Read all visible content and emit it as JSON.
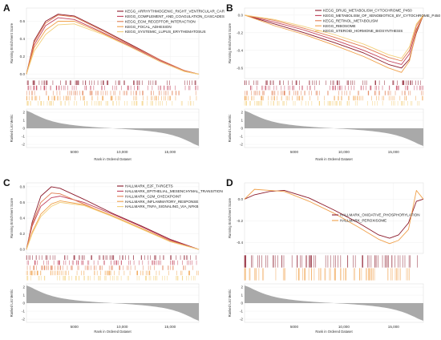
{
  "figure": {
    "background": "#ffffff"
  },
  "chart_data": [
    {
      "letter": "A",
      "type": "line",
      "title": "",
      "x_range": [
        0,
        18000
      ],
      "x_ticks": [
        "5000",
        "10,000",
        "15,000"
      ],
      "x_tick_values": [
        5000,
        10000,
        15000
      ],
      "xlabel": "Rank in Ordered Dataset",
      "es_ylabel": "Running Enrichment Score",
      "es_ylim": [
        -0.05,
        0.75
      ],
      "es_ticks": [
        "0.0",
        "0.2",
        "0.4",
        "0.6"
      ],
      "es_tick_values": [
        0,
        0.2,
        0.4,
        0.6
      ],
      "metric_ylabel": "Ranked List Metric",
      "metric_ticks": [
        "2",
        "1",
        "0",
        "-1",
        "-2"
      ],
      "metric_tick_values": [
        2,
        1,
        0,
        -1,
        -2
      ],
      "legend_position": "top-right",
      "series": [
        {
          "name": "KEGG_ARRHYTHMOGENIC_RIGHT_VENTRICULAR_CAR",
          "color": "#8b1a2b",
          "x": [
            0,
            800,
            2000,
            3300,
            5000,
            8000,
            11000,
            14000,
            16500,
            18000
          ],
          "es": [
            0,
            0.38,
            0.6,
            0.68,
            0.66,
            0.5,
            0.33,
            0.16,
            0.04,
            0
          ]
        },
        {
          "name": "KEGG_COMPLEMENT_AND_COAGULATION_CASCADES",
          "color": "#c2405a",
          "x": [
            0,
            800,
            2000,
            3300,
            5000,
            8000,
            11000,
            14000,
            16500,
            18000
          ],
          "es": [
            0,
            0.33,
            0.55,
            0.64,
            0.62,
            0.47,
            0.31,
            0.15,
            0.04,
            0
          ]
        },
        {
          "name": "KEGG_ECM_RECEPTOR_INTERACTION",
          "color": "#e07b50",
          "x": [
            0,
            800,
            2000,
            3300,
            5000,
            8000,
            11000,
            14000,
            16500,
            18000
          ],
          "es": [
            0,
            0.36,
            0.58,
            0.67,
            0.65,
            0.49,
            0.32,
            0.16,
            0.04,
            0
          ]
        },
        {
          "name": "KEGG_FOCAL_ADHESION",
          "color": "#f0a04a",
          "x": [
            0,
            800,
            2000,
            3300,
            5000,
            8000,
            11000,
            14000,
            16500,
            18000
          ],
          "es": [
            0,
            0.3,
            0.5,
            0.6,
            0.6,
            0.46,
            0.3,
            0.14,
            0.03,
            0
          ]
        },
        {
          "name": "KEGG_SYSTEMIC_LUPUS_ERYTHEMATOSUS",
          "color": "#f3cf7a",
          "x": [
            0,
            800,
            2000,
            3300,
            5000,
            8000,
            11000,
            14000,
            16500,
            18000
          ],
          "es": [
            0,
            0.26,
            0.45,
            0.56,
            0.57,
            0.45,
            0.3,
            0.14,
            0.03,
            0
          ]
        }
      ]
    },
    {
      "letter": "B",
      "type": "line",
      "title": "",
      "x_range": [
        0,
        18000
      ],
      "x_ticks": [
        "5000",
        "10,000",
        "15,000"
      ],
      "x_tick_values": [
        5000,
        10000,
        15000
      ],
      "xlabel": "Rank in Ordered Dataset",
      "es_ylabel": "Running Enrichment Score",
      "es_ylim": [
        -0.72,
        0.08
      ],
      "es_ticks": [
        "0.0",
        "-0.2",
        "-0.4",
        "-0.6"
      ],
      "es_tick_values": [
        0,
        -0.2,
        -0.4,
        -0.6
      ],
      "metric_ylabel": "Ranked List Metric",
      "metric_ticks": [
        "2",
        "1",
        "0",
        "-1",
        "-2"
      ],
      "metric_tick_values": [
        2,
        1,
        0,
        -1,
        -2
      ],
      "legend_position": "top-right",
      "series": [
        {
          "name": "KEGG_DRUG_METABOLISM_CYTOCHROME_P450",
          "color": "#8b1a2b",
          "x": [
            0,
            3000,
            6000,
            9000,
            12000,
            14500,
            15800,
            16600,
            17300,
            18000
          ],
          "es": [
            0,
            -0.1,
            -0.2,
            -0.31,
            -0.43,
            -0.56,
            -0.6,
            -0.5,
            -0.2,
            0
          ]
        },
        {
          "name": "KEGG_METABOLISM_OF_XENOBIOTICS_BY_CYTOCHROME_P450",
          "color": "#c2405a",
          "x": [
            0,
            3000,
            6000,
            9000,
            12000,
            14500,
            15800,
            16600,
            17300,
            18000
          ],
          "es": [
            0,
            -0.08,
            -0.17,
            -0.28,
            -0.4,
            -0.52,
            -0.56,
            -0.44,
            -0.16,
            0
          ]
        },
        {
          "name": "KEGG_RETINOL_METABOLISM",
          "color": "#e07b50",
          "x": [
            0,
            3000,
            6000,
            9000,
            12000,
            14500,
            15800,
            16600,
            17300,
            18000
          ],
          "es": [
            0,
            -0.06,
            -0.15,
            -0.25,
            -0.36,
            -0.48,
            -0.52,
            -0.4,
            -0.12,
            0
          ]
        },
        {
          "name": "KEGG_RIBOSOME",
          "color": "#f0a04a",
          "x": [
            0,
            3000,
            6000,
            9000,
            12000,
            14500,
            15800,
            16600,
            17300,
            18000
          ],
          "es": [
            0,
            -0.12,
            -0.22,
            -0.34,
            -0.47,
            -0.6,
            -0.65,
            -0.52,
            -0.18,
            0
          ]
        },
        {
          "name": "KEGG_STEROID_HORMONE_BIOSYNTHESIS",
          "color": "#f3cf7a",
          "x": [
            0,
            3000,
            6000,
            9000,
            12000,
            14500,
            15800,
            16600,
            17300,
            18000
          ],
          "es": [
            0,
            -0.05,
            -0.13,
            -0.22,
            -0.33,
            -0.45,
            -0.49,
            -0.36,
            -0.1,
            0
          ]
        }
      ]
    },
    {
      "letter": "C",
      "type": "line",
      "title": "",
      "x_range": [
        0,
        18000
      ],
      "x_ticks": [
        "5000",
        "10,000",
        "15,000"
      ],
      "x_tick_values": [
        5000,
        10000,
        15000
      ],
      "xlabel": "Rank in Ordered Dataset",
      "es_ylabel": "Running Enrichment Score",
      "es_ylim": [
        -0.05,
        0.85
      ],
      "es_ticks": [
        "0.0",
        "0.2",
        "0.4",
        "0.6",
        "0.8"
      ],
      "es_tick_values": [
        0,
        0.2,
        0.4,
        0.6,
        0.8
      ],
      "metric_ylabel": "Ranked List Metric",
      "metric_ticks": [
        "2",
        "1",
        "0",
        "-1",
        "-2"
      ],
      "metric_tick_values": [
        2,
        1,
        0,
        -1,
        -2
      ],
      "legend_position": "top-right",
      "series": [
        {
          "name": "HALLMARK_E2F_TARGETS",
          "color": "#8b1a2b",
          "x": [
            0,
            600,
            1500,
            2600,
            3500,
            6000,
            9000,
            12000,
            15000,
            18000
          ],
          "es": [
            0,
            0.35,
            0.68,
            0.8,
            0.78,
            0.64,
            0.46,
            0.3,
            0.13,
            0
          ]
        },
        {
          "name": "HALLMARK_EPITHELIAL_MESENCHYMAL_TRANSITION",
          "color": "#c2405a",
          "x": [
            0,
            600,
            1500,
            2600,
            3500,
            6000,
            9000,
            12000,
            15000,
            18000
          ],
          "es": [
            0,
            0.3,
            0.55,
            0.66,
            0.68,
            0.6,
            0.45,
            0.29,
            0.12,
            0
          ]
        },
        {
          "name": "HALLMARK_G2M_CHECKPOINT",
          "color": "#e07b50",
          "x": [
            0,
            600,
            1500,
            2600,
            3500,
            6000,
            9000,
            12000,
            15000,
            18000
          ],
          "es": [
            0,
            0.32,
            0.6,
            0.72,
            0.71,
            0.58,
            0.42,
            0.27,
            0.11,
            0
          ]
        },
        {
          "name": "HALLMARK_INFLAMMATORY_RESPONSE",
          "color": "#f0a04a",
          "x": [
            0,
            600,
            1500,
            2600,
            3500,
            6000,
            9000,
            12000,
            15000,
            18000
          ],
          "es": [
            0,
            0.22,
            0.45,
            0.58,
            0.62,
            0.57,
            0.43,
            0.27,
            0.1,
            0
          ]
        },
        {
          "name": "HALLMARK_TNFA_SIGNALING_VIA_NFKB",
          "color": "#f3cf7a",
          "x": [
            0,
            600,
            1500,
            2600,
            3500,
            6000,
            9000,
            12000,
            15000,
            18000
          ],
          "es": [
            0,
            0.2,
            0.42,
            0.55,
            0.6,
            0.56,
            0.42,
            0.26,
            0.1,
            0
          ]
        }
      ]
    },
    {
      "letter": "D",
      "type": "line",
      "title": "",
      "x_range": [
        0,
        18000
      ],
      "x_ticks": [
        "5000",
        "10,000",
        "15,000"
      ],
      "x_tick_values": [
        5000,
        10000,
        15000
      ],
      "xlabel": "Rank in Ordered Dataset",
      "es_ylabel": "Running Enrichment Score",
      "es_ylim": [
        -0.5,
        0.15
      ],
      "es_ticks": [
        "0.0",
        "-0.2",
        "-0.4"
      ],
      "es_tick_values": [
        0,
        -0.2,
        -0.4
      ],
      "metric_ylabel": "Ranked List Metric",
      "metric_ticks": [
        "2",
        "1",
        "0",
        "-1",
        "-2"
      ],
      "metric_tick_values": [
        2,
        1,
        0,
        -1,
        -2
      ],
      "legend_position": "center-right",
      "series": [
        {
          "name": "HALLMARK_OXIDATIVE_PHOSPHORYLATION",
          "color": "#8b1a2b",
          "x": [
            0,
            1000,
            2500,
            4000,
            6500,
            9000,
            11500,
            13500,
            14600,
            15500,
            16500,
            17300,
            18000
          ],
          "es": [
            0,
            0.04,
            0.07,
            0.08,
            0.01,
            -0.1,
            -0.22,
            -0.33,
            -0.36,
            -0.33,
            -0.22,
            -0.02,
            0
          ]
        },
        {
          "name": "HALLMARK_PEROXISOME",
          "color": "#f0a04a",
          "x": [
            0,
            1000,
            2500,
            4000,
            6500,
            9000,
            11500,
            13500,
            14600,
            15500,
            16500,
            17300,
            18000
          ],
          "es": [
            0,
            0.09,
            0.08,
            0.07,
            -0.02,
            -0.13,
            -0.26,
            -0.37,
            -0.41,
            -0.38,
            -0.28,
            0.08,
            0
          ]
        }
      ]
    }
  ]
}
